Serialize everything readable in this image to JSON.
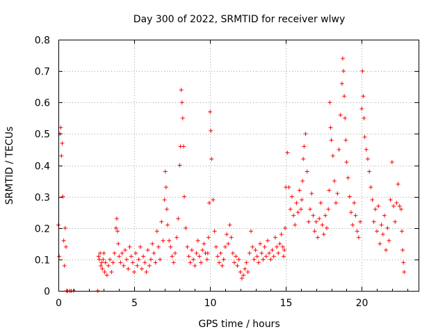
{
  "chart_data": {
    "type": "scatter",
    "title": "Day 300 of 2022, SRMTID for receiver wlwy",
    "xlabel": "GPS time / hours",
    "ylabel": "SRMTID / TECUs",
    "xlim": [
      0,
      23.75
    ],
    "ylim": [
      0,
      0.8
    ],
    "xticks": [
      0,
      5,
      10,
      15,
      20
    ],
    "yticks": [
      0,
      0.1,
      0.2,
      0.3,
      0.4,
      0.5,
      0.6,
      0.7,
      0.8
    ],
    "xtick_labels": [
      "0",
      "5",
      "10",
      "15",
      "20"
    ],
    "ytick_labels": [
      "0",
      "0.1",
      "0.2",
      "0.3",
      "0.4",
      "0.5",
      "0.6",
      "0.7",
      "0.8"
    ],
    "grid": true,
    "marker": "+",
    "marker_color": "#ff0000",
    "series": [
      {
        "name": "SRMTID",
        "x": [
          0.0,
          0.05,
          0.1,
          0.15,
          0.2,
          0.25,
          0.3,
          0.35,
          0.4,
          0.45,
          0.5,
          0.55,
          0.6,
          0.75,
          0.85,
          1.0,
          2.6,
          2.65,
          2.7,
          2.75,
          2.8,
          2.85,
          2.9,
          2.95,
          3.0,
          3.05,
          3.1,
          3.2,
          3.3,
          3.4,
          3.5,
          3.6,
          3.7,
          3.8,
          3.85,
          3.9,
          3.95,
          4.0,
          4.1,
          4.2,
          4.3,
          4.4,
          4.5,
          4.6,
          4.7,
          4.8,
          4.9,
          5.0,
          5.1,
          5.2,
          5.3,
          5.4,
          5.5,
          5.6,
          5.7,
          5.8,
          5.9,
          6.0,
          6.1,
          6.2,
          6.3,
          6.4,
          6.5,
          6.6,
          6.7,
          6.8,
          6.9,
          7.0,
          7.05,
          7.1,
          7.15,
          7.2,
          7.3,
          7.4,
          7.5,
          7.6,
          7.7,
          7.8,
          7.9,
          8.0,
          8.05,
          8.1,
          8.15,
          8.2,
          8.25,
          8.3,
          8.4,
          8.5,
          8.6,
          8.7,
          8.8,
          8.9,
          9.0,
          9.1,
          9.2,
          9.3,
          9.4,
          9.5,
          9.6,
          9.7,
          9.8,
          9.85,
          9.9,
          9.95,
          10.0,
          10.05,
          10.1,
          10.2,
          10.3,
          10.4,
          10.5,
          10.6,
          10.7,
          10.8,
          10.9,
          11.0,
          11.1,
          11.2,
          11.3,
          11.4,
          11.5,
          11.6,
          11.7,
          11.8,
          11.9,
          12.0,
          12.1,
          12.2,
          12.3,
          12.4,
          12.5,
          12.6,
          12.7,
          12.8,
          12.9,
          13.0,
          13.1,
          13.2,
          13.3,
          13.4,
          13.5,
          13.6,
          13.7,
          13.8,
          13.9,
          14.0,
          14.1,
          14.2,
          14.3,
          14.4,
          14.5,
          14.6,
          14.7,
          14.8,
          14.85,
          14.9,
          14.95,
          15.0,
          15.1,
          15.2,
          15.3,
          15.4,
          15.5,
          15.6,
          15.7,
          15.8,
          15.9,
          16.0,
          16.05,
          16.1,
          16.15,
          16.2,
          16.3,
          16.4,
          16.5,
          16.6,
          16.7,
          16.8,
          16.9,
          17.0,
          17.1,
          17.2,
          17.3,
          17.4,
          17.5,
          17.6,
          17.7,
          17.8,
          17.85,
          17.9,
          17.95,
          18.0,
          18.1,
          18.2,
          18.3,
          18.4,
          18.5,
          18.6,
          18.7,
          18.75,
          18.8,
          18.85,
          18.9,
          18.95,
          19.0,
          19.1,
          19.2,
          19.3,
          19.4,
          19.5,
          19.6,
          19.7,
          19.8,
          19.9,
          20.0,
          20.05,
          20.1,
          20.15,
          20.2,
          20.3,
          20.4,
          20.5,
          20.6,
          20.7,
          20.8,
          20.9,
          21.0,
          21.1,
          21.2,
          21.3,
          21.4,
          21.5,
          21.6,
          21.7,
          21.8,
          21.9,
          22.0,
          22.1,
          22.2,
          22.3,
          22.4,
          22.5,
          22.6,
          22.65,
          22.7,
          22.75,
          22.8
        ],
        "y": [
          0.21,
          0.11,
          0.5,
          0.52,
          0.43,
          0.47,
          0.3,
          0.16,
          0.08,
          0.2,
          0.14,
          0.0,
          0.0,
          0.0,
          0.0,
          0.0,
          0.0,
          0.11,
          0.1,
          0.12,
          0.08,
          0.09,
          0.07,
          0.1,
          0.12,
          0.06,
          0.09,
          0.05,
          0.08,
          0.1,
          0.06,
          0.09,
          0.12,
          0.2,
          0.23,
          0.19,
          0.15,
          0.11,
          0.09,
          0.12,
          0.08,
          0.13,
          0.1,
          0.07,
          0.14,
          0.11,
          0.09,
          0.06,
          0.12,
          0.08,
          0.1,
          0.14,
          0.07,
          0.11,
          0.09,
          0.06,
          0.13,
          0.08,
          0.1,
          0.15,
          0.12,
          0.09,
          0.19,
          0.14,
          0.1,
          0.22,
          0.16,
          0.29,
          0.38,
          0.33,
          0.26,
          0.21,
          0.16,
          0.14,
          0.11,
          0.09,
          0.12,
          0.17,
          0.23,
          0.4,
          0.46,
          0.64,
          0.6,
          0.55,
          0.46,
          0.3,
          0.2,
          0.14,
          0.11,
          0.09,
          0.13,
          0.1,
          0.08,
          0.12,
          0.16,
          0.11,
          0.09,
          0.13,
          0.15,
          0.12,
          0.1,
          0.12,
          0.17,
          0.28,
          0.57,
          0.51,
          0.42,
          0.29,
          0.19,
          0.14,
          0.11,
          0.09,
          0.12,
          0.08,
          0.1,
          0.14,
          0.18,
          0.15,
          0.21,
          0.17,
          0.12,
          0.09,
          0.11,
          0.08,
          0.1,
          0.06,
          0.04,
          0.05,
          0.07,
          0.09,
          0.06,
          0.12,
          0.19,
          0.14,
          0.1,
          0.13,
          0.11,
          0.09,
          0.15,
          0.12,
          0.1,
          0.14,
          0.11,
          0.16,
          0.12,
          0.1,
          0.13,
          0.11,
          0.17,
          0.14,
          0.12,
          0.15,
          0.18,
          0.14,
          0.11,
          0.13,
          0.2,
          0.33,
          0.44,
          0.33,
          0.26,
          0.3,
          0.24,
          0.21,
          0.28,
          0.25,
          0.32,
          0.26,
          0.29,
          0.35,
          0.42,
          0.46,
          0.5,
          0.38,
          0.22,
          0.26,
          0.31,
          0.24,
          0.19,
          0.22,
          0.17,
          0.23,
          0.28,
          0.21,
          0.18,
          0.24,
          0.2,
          0.26,
          0.32,
          0.6,
          0.52,
          0.48,
          0.43,
          0.35,
          0.28,
          0.31,
          0.45,
          0.56,
          0.66,
          0.74,
          0.7,
          0.62,
          0.55,
          0.48,
          0.41,
          0.36,
          0.3,
          0.25,
          0.21,
          0.28,
          0.24,
          0.19,
          0.17,
          0.22,
          0.58,
          0.7,
          0.62,
          0.55,
          0.49,
          0.45,
          0.42,
          0.38,
          0.33,
          0.29,
          0.22,
          0.26,
          0.19,
          0.27,
          0.15,
          0.21,
          0.18,
          0.24,
          0.13,
          0.2,
          0.16,
          0.29,
          0.41,
          0.27,
          0.22,
          0.28,
          0.34,
          0.27,
          0.26,
          0.19,
          0.13,
          0.09,
          0.06
        ]
      }
    ]
  }
}
